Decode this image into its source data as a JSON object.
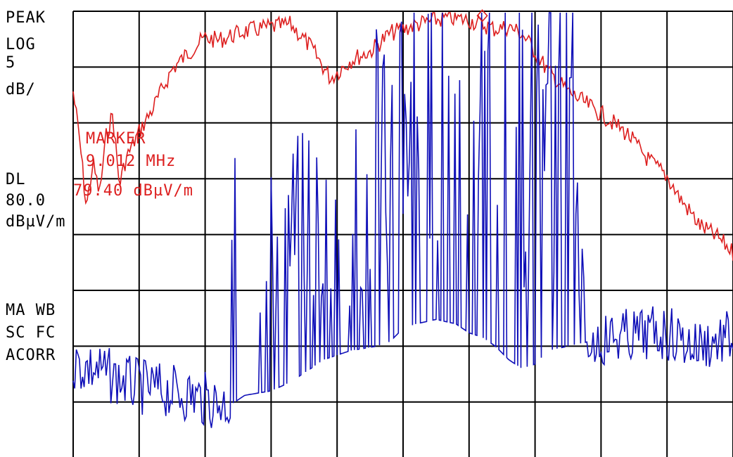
{
  "colors": {
    "background": "#ffffff",
    "grid": "#000000",
    "text": "#000000",
    "peak_trace": "#dd1f1f",
    "live_trace": "#1010b8"
  },
  "left_panel": {
    "detector": "PEAK",
    "scale_type": "LOG",
    "scale_value": "5",
    "scale_unit": "dB/",
    "display_line_title": "DL",
    "display_line_value": "80.0",
    "display_line_unit": "dBµV/m",
    "mode_line1": "MA WB",
    "mode_line2": "SC FC",
    "mode_line3": "ACORR"
  },
  "marker": {
    "title": "MARKER",
    "frequency": "9.012 MHz",
    "level": "79.40 dBµV/m"
  },
  "chart_data": {
    "type": "line",
    "grid": true,
    "divisions_x": 10,
    "divisions_y": 8,
    "scale_db_per_div": 5,
    "display_line_dbuv_per_m": 80.0,
    "marker_position": [
      0.62,
      0.02
    ],
    "series": [
      {
        "color": "#dd1f1f",
        "x": [
          0.0,
          0.01,
          0.02,
          0.03,
          0.04,
          0.05,
          0.06,
          0.07,
          0.08,
          0.1,
          0.12,
          0.15,
          0.18,
          0.2,
          0.22,
          0.24,
          0.26,
          0.3,
          0.33,
          0.36,
          0.39,
          0.42,
          0.45,
          0.48,
          0.5,
          0.52,
          0.55,
          0.57,
          0.6,
          0.62,
          0.64,
          0.66,
          0.68,
          0.7,
          0.72,
          0.75,
          0.78,
          0.81,
          0.84,
          0.87,
          0.9,
          0.92,
          0.95,
          0.98,
          1.0
        ],
        "values": [
          0.36,
          0.58,
          0.88,
          0.68,
          0.82,
          0.56,
          0.46,
          0.78,
          0.66,
          0.54,
          0.44,
          0.26,
          0.17,
          0.12,
          0.13,
          0.11,
          0.09,
          0.07,
          0.06,
          0.16,
          0.3,
          0.22,
          0.18,
          0.1,
          0.08,
          0.06,
          0.04,
          0.03,
          0.04,
          0.06,
          0.08,
          0.07,
          0.1,
          0.18,
          0.27,
          0.36,
          0.42,
          0.48,
          0.55,
          0.66,
          0.74,
          0.84,
          0.96,
          1.02,
          1.08
        ]
      },
      {
        "color": "#1010b8",
        "x": [
          0.0,
          0.03,
          0.06,
          0.1,
          0.14,
          0.18,
          0.2,
          0.24,
          0.26,
          0.3,
          0.33,
          0.36,
          0.38,
          0.42,
          0.46,
          0.48,
          0.5,
          0.52,
          0.55,
          0.58,
          0.6,
          0.62,
          0.64,
          0.66,
          0.68,
          0.7,
          0.72,
          0.75,
          0.78,
          0.82,
          0.86,
          0.9,
          0.94,
          0.97,
          1.0
        ],
        "values": [
          1.58,
          1.6,
          1.64,
          1.68,
          1.7,
          1.72,
          1.74,
          1.76,
          1.72,
          1.7,
          1.66,
          1.6,
          1.56,
          1.52,
          1.5,
          1.48,
          1.42,
          1.4,
          1.38,
          1.4,
          1.44,
          1.46,
          1.5,
          1.56,
          1.6,
          1.58,
          1.52,
          1.5,
          1.48,
          1.46,
          1.45,
          1.44,
          1.5,
          1.48,
          1.46
        ]
      }
    ]
  }
}
